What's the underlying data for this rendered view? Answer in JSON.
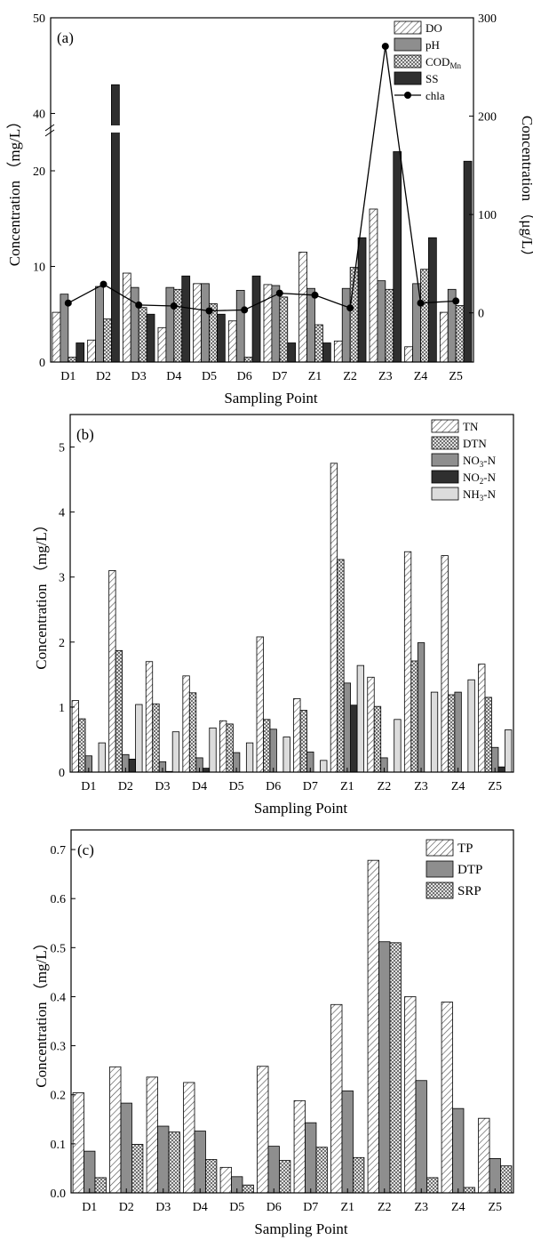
{
  "chart_data": [
    {
      "type": "bar",
      "panel_label": "(a)",
      "categories": [
        "D1",
        "D2",
        "D3",
        "D4",
        "D5",
        "D6",
        "D7",
        "Z1",
        "Z2",
        "Z3",
        "Z4",
        "Z5"
      ],
      "xlabel": "Sampling Point",
      "ylabel": "Concentration （mg/L）",
      "ylabel_right": "Concentration （μg/L）",
      "ylim": [
        0,
        50
      ],
      "axis_break": [
        24,
        38
      ],
      "yticks": [
        0,
        10,
        20,
        40,
        50
      ],
      "ylim_right": [
        -50,
        300
      ],
      "yticks_right": [
        0,
        100,
        200,
        300
      ],
      "legend_position": "top-right",
      "series": [
        {
          "name": "DO",
          "pattern": "hatch",
          "values": [
            5.2,
            2.3,
            9.3,
            3.6,
            8.2,
            4.3,
            8.1,
            11.5,
            2.2,
            16.0,
            1.6,
            5.2
          ]
        },
        {
          "name": "pH",
          "pattern": "gray",
          "values": [
            7.1,
            7.9,
            7.8,
            7.8,
            8.2,
            7.5,
            8.0,
            7.7,
            7.7,
            8.5,
            8.2,
            7.6
          ]
        },
        {
          "name": "COD",
          "name_sub": "Mn",
          "pattern": "cross",
          "values": [
            0.5,
            4.5,
            5.7,
            7.6,
            6.1,
            0.5,
            6.8,
            3.9,
            9.9,
            7.6,
            9.7,
            5.9
          ]
        },
        {
          "name": "SS",
          "pattern": "dark",
          "values": [
            2.0,
            43.0,
            5.0,
            9.0,
            5.0,
            9.0,
            2.0,
            2.0,
            13.0,
            22.0,
            13.0,
            21.0
          ]
        },
        {
          "name": "chla",
          "type": "line",
          "axis": "right",
          "values": [
            10,
            29,
            8,
            7,
            2,
            3,
            20,
            18,
            5,
            271,
            10,
            12
          ]
        }
      ]
    },
    {
      "type": "bar",
      "panel_label": "(b)",
      "categories": [
        "D1",
        "D2",
        "D3",
        "D4",
        "D5",
        "D6",
        "D7",
        "Z1",
        "Z2",
        "Z3",
        "Z4",
        "Z5"
      ],
      "xlabel": "Sampling Point",
      "ylabel": "Concentration （mg/L）",
      "ylim": [
        0,
        5.5
      ],
      "yticks": [
        0,
        1,
        2,
        3,
        4,
        5
      ],
      "legend_position": "top-right",
      "series": [
        {
          "name": "TN",
          "pattern": "hatch",
          "values": [
            1.1,
            3.1,
            1.7,
            1.48,
            0.79,
            2.08,
            1.13,
            4.75,
            1.46,
            3.39,
            3.33,
            1.66
          ]
        },
        {
          "name": "DTN",
          "pattern": "cross",
          "values": [
            0.82,
            1.87,
            1.05,
            1.22,
            0.74,
            0.81,
            0.95,
            3.27,
            1.01,
            1.71,
            1.19,
            1.15
          ]
        },
        {
          "name": "NO",
          "name_sub": "3",
          "name_suffix": "-N",
          "pattern": "gray",
          "values": [
            0.25,
            0.27,
            0.16,
            0.22,
            0.3,
            0.66,
            0.31,
            1.37,
            0.22,
            1.99,
            1.23,
            0.38
          ]
        },
        {
          "name": "NO",
          "name_sub": "2",
          "name_suffix": "-N",
          "pattern": "dark",
          "values": [
            0.0,
            0.2,
            0.01,
            0.06,
            0.0,
            0.0,
            0.0,
            1.03,
            0.0,
            0.0,
            0.0,
            0.08
          ]
        },
        {
          "name": "NH",
          "name_sub": "3",
          "name_suffix": "-N",
          "pattern": "light",
          "values": [
            0.45,
            1.04,
            0.62,
            0.68,
            0.45,
            0.54,
            0.18,
            1.64,
            0.81,
            1.23,
            1.42,
            0.65
          ]
        }
      ]
    },
    {
      "type": "bar",
      "panel_label": "(c)",
      "categories": [
        "D1",
        "D2",
        "D3",
        "D4",
        "D5",
        "D6",
        "D7",
        "Z1",
        "Z2",
        "Z3",
        "Z4",
        "Z5"
      ],
      "xlabel": "Sampling Point",
      "ylabel": "Concentration （mg/L）",
      "ylim": [
        0,
        0.74
      ],
      "yticks": [
        0.0,
        0.1,
        0.2,
        0.3,
        0.4,
        0.5,
        0.6,
        0.7
      ],
      "legend_position": "top-right",
      "series": [
        {
          "name": "TP",
          "pattern": "hatch",
          "values": [
            0.204,
            0.257,
            0.236,
            0.225,
            0.052,
            0.258,
            0.188,
            0.384,
            0.678,
            0.4,
            0.389,
            0.152
          ]
        },
        {
          "name": "DTP",
          "pattern": "gray",
          "values": [
            0.085,
            0.183,
            0.136,
            0.126,
            0.033,
            0.095,
            0.143,
            0.208,
            0.512,
            0.229,
            0.172,
            0.07
          ]
        },
        {
          "name": "SRP",
          "pattern": "cross",
          "values": [
            0.031,
            0.099,
            0.124,
            0.068,
            0.016,
            0.066,
            0.093,
            0.072,
            0.51,
            0.031,
            0.011,
            0.055
          ]
        }
      ]
    }
  ]
}
